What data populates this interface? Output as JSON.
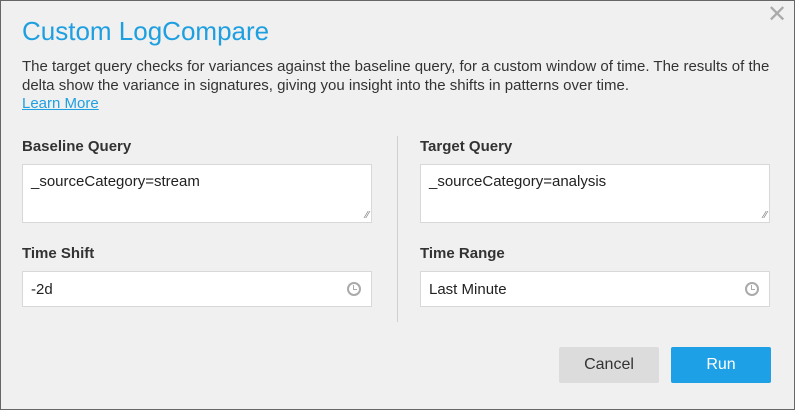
{
  "dialog": {
    "title": "Custom LogCompare",
    "close_icon": "close-icon",
    "description": "The target query checks for variances against the baseline query, for a custom window of time. The results of the delta show the variance in signatures, giving you insight into the shifts in patterns over time.",
    "learn_more": "Learn More",
    "accent_color": "#1e9fe0"
  },
  "baseline": {
    "label": "Baseline Query",
    "value": "_sourceCategory=stream"
  },
  "target": {
    "label": "Target Query",
    "value": "_sourceCategory=analysis"
  },
  "time_shift": {
    "label": "Time Shift",
    "value": "-2d",
    "icon": "clock-icon"
  },
  "time_range": {
    "label": "Time Range",
    "value": "Last Minute",
    "icon": "clock-icon"
  },
  "buttons": {
    "cancel": "Cancel",
    "run": "Run"
  }
}
